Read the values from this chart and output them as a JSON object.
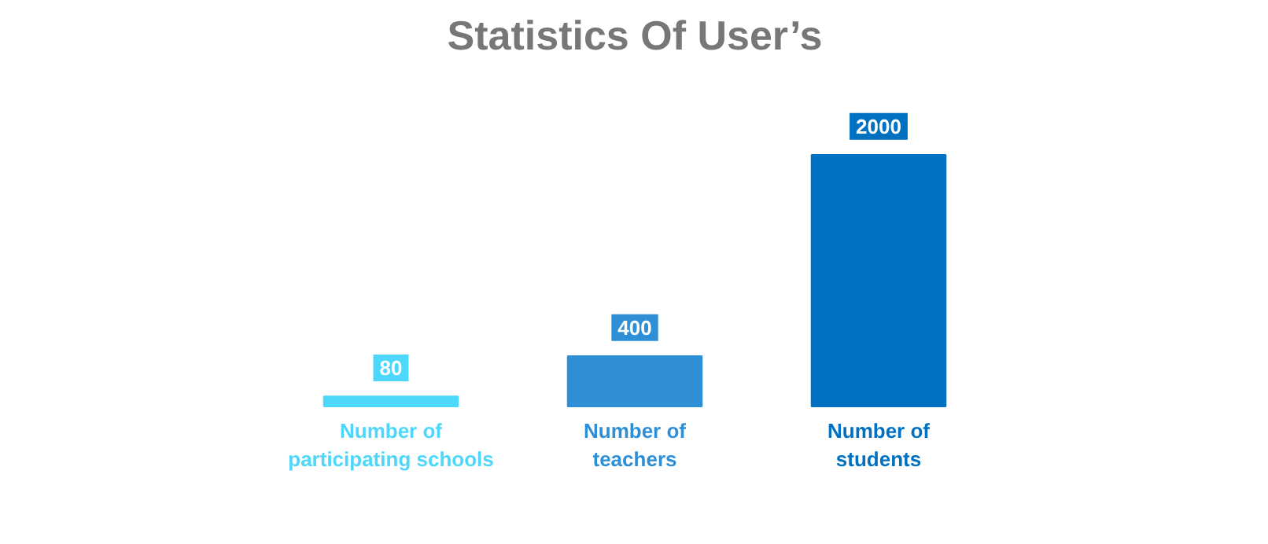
{
  "chart_data": {
    "type": "bar",
    "title": "Statistics Of User’s",
    "categories": [
      "Number of participating schools",
      "Number of teachers",
      "Number of students"
    ],
    "values": [
      80,
      400,
      2000
    ],
    "colors": [
      "#4dd8fb",
      "#2e8fd6",
      "#0070c0"
    ],
    "data_labels": true
  }
}
